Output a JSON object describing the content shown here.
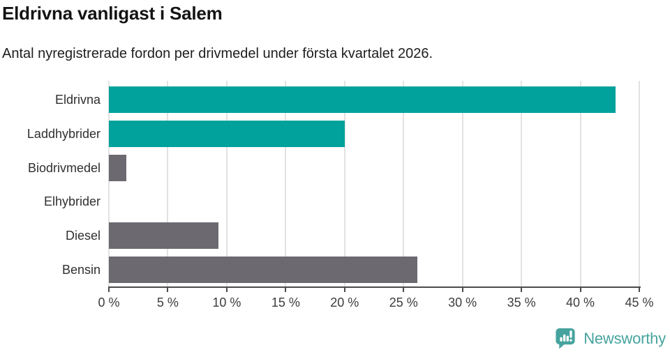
{
  "title": "Eldrivna vanligast i Salem",
  "subtitle": "Antal nyregistrerade fordon per drivmedel under första kvartalet 2026.",
  "chart_data": {
    "type": "bar",
    "orientation": "horizontal",
    "title": "Eldrivna vanligast i Salem",
    "subtitle": "Antal nyregistrerade fordon per drivmedel under första kvartalet 2026.",
    "categories": [
      "Eldrivna",
      "Laddhybrider",
      "Biodrivmedel",
      "Elhybrider",
      "Diesel",
      "Bensin"
    ],
    "values": [
      43,
      20,
      1.5,
      0,
      9.3,
      26.2
    ],
    "unit": "%",
    "xlim": [
      0,
      45
    ],
    "x_ticks": [
      0,
      5,
      10,
      15,
      20,
      25,
      30,
      35,
      40,
      45
    ],
    "x_tick_labels": [
      "0 %",
      "5 %",
      "10 %",
      "15 %",
      "20 %",
      "25 %",
      "30 %",
      "35 %",
      "40 %",
      "45 %"
    ],
    "bar_colors": [
      "#00a29b",
      "#00a29b",
      "#6c6a70",
      "#6c6a70",
      "#6c6a70",
      "#6c6a70"
    ],
    "grid": true,
    "legend": false
  },
  "colors": {
    "teal": "#00a29b",
    "gray": "#6c6a70",
    "gridline": "#e2e2e2",
    "axis": "#4b4b4b",
    "logo": "#46a39e"
  },
  "branding": {
    "logo_text": "Newsworthy",
    "logo_icon": "bar-chart-speech-bubble-icon"
  }
}
